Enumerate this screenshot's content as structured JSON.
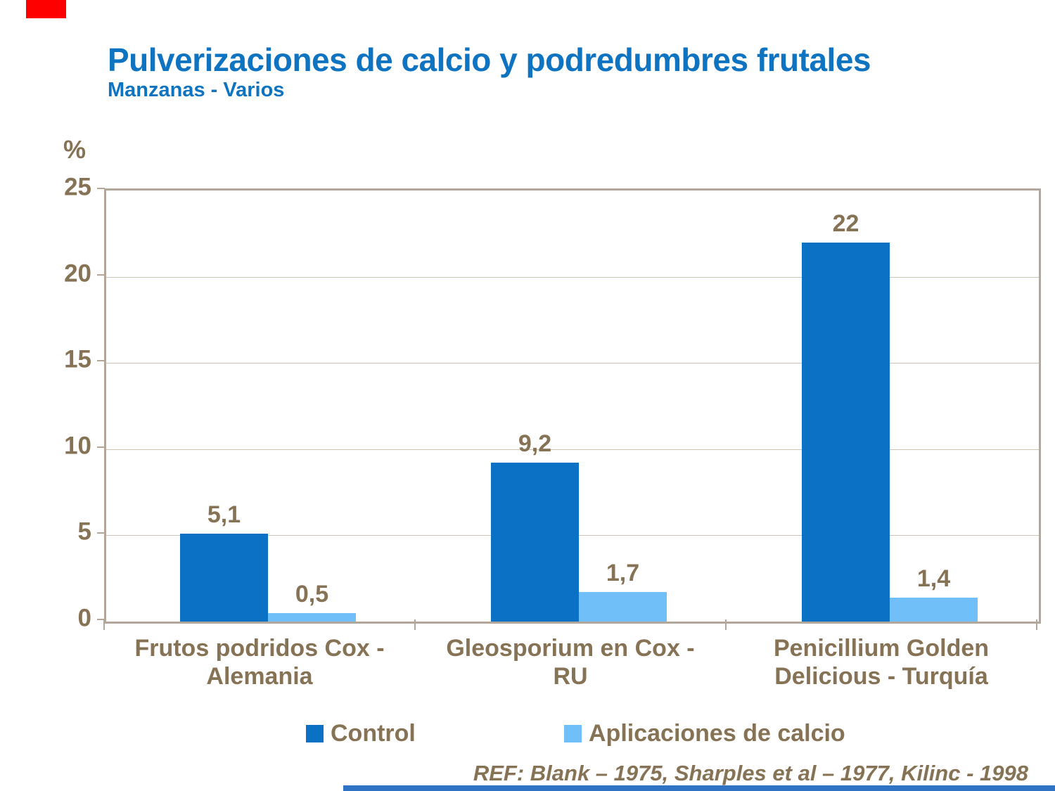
{
  "slide": {
    "title": "Pulverizaciones de calcio y podredumbres frutales",
    "subtitle": "Manzanas - Varios",
    "reference": "REF: Blank – 1975, Sharples et al – 1977, Kilinc - 1998"
  },
  "colors": {
    "title_blue": "#0E73C0",
    "text_brown": "#867254",
    "axis_frame": "#B3A69A",
    "gridline": "#CDC2B4",
    "control_bar": "#0B71C4",
    "calcium_bar": "#70BFF8",
    "accent_red": "#FF0000",
    "footer_strip_blue": "#2F74C4"
  },
  "chart_data": {
    "type": "bar",
    "title": "Pulverizaciones de calcio y podredumbres frutales",
    "subtitle": "Manzanas - Varios",
    "ylabel": "%",
    "xlabel": "",
    "ylim": [
      0,
      25
    ],
    "yticks": [
      0,
      5,
      10,
      15,
      20,
      25
    ],
    "grid": "horizontal",
    "legend_position": "bottom",
    "categories": [
      "Frutos podridos Cox - Alemania",
      "Gleosporium en Cox - RU",
      "Penicillium Golden Delicious - Turquía"
    ],
    "category_lines": [
      [
        "Frutos podridos Cox -",
        "Alemania"
      ],
      [
        "Gleosporium en Cox -",
        "RU"
      ],
      [
        "Penicillium Golden",
        "Delicious - Turquía"
      ]
    ],
    "series": [
      {
        "name": "Control",
        "values": [
          5.1,
          9.2,
          22
        ],
        "labels": [
          "5,1",
          "9,2",
          "22"
        ],
        "color": "#0B71C4"
      },
      {
        "name": "Aplicaciones de calcio",
        "values": [
          0.5,
          1.7,
          1.4
        ],
        "labels": [
          "0,5",
          "1,7",
          "1,4"
        ],
        "color": "#70BFF8"
      }
    ]
  }
}
